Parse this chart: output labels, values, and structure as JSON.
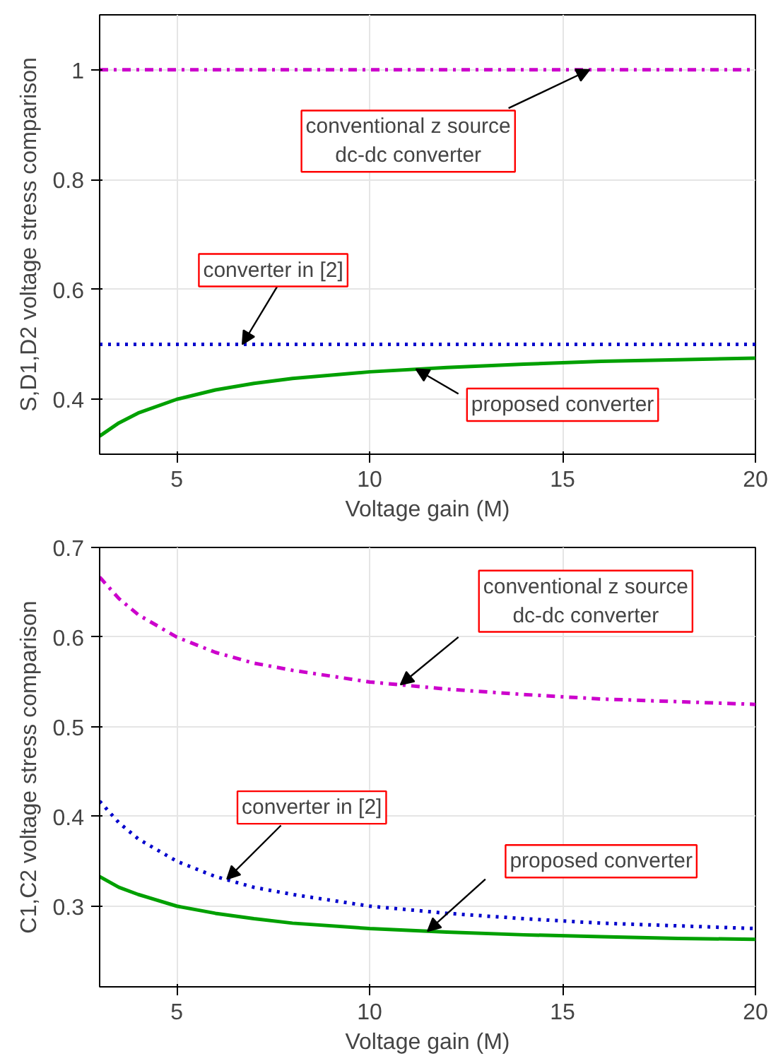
{
  "chart_data": [
    {
      "type": "line",
      "xlabel": "Voltage gain (M)",
      "ylabel": "S,D1,D2 voltage stress comparison",
      "xlim": [
        3,
        20
      ],
      "ylim": [
        0.3,
        1.1
      ],
      "xticks": [
        5,
        10,
        15,
        20
      ],
      "yticks": [
        0.4,
        0.6,
        0.8,
        1
      ],
      "grid": true,
      "x": [
        3,
        3.5,
        4,
        5,
        6,
        7,
        8,
        10,
        12,
        14,
        16,
        18,
        20
      ],
      "series": [
        {
          "color": "#cc00cc",
          "line_style": "dashdot",
          "values": [
            1,
            1,
            1,
            1,
            1,
            1,
            1,
            1,
            1,
            1,
            1,
            1,
            1
          ]
        },
        {
          "color": "#0000cc",
          "line_style": "dotted",
          "values": [
            0.5,
            0.5,
            0.5,
            0.5,
            0.5,
            0.5,
            0.5,
            0.5,
            0.5,
            0.5,
            0.5,
            0.5,
            0.5
          ]
        },
        {
          "color": "#00a000",
          "line_style": "solid",
          "values": [
            0.333,
            0.357,
            0.375,
            0.4,
            0.417,
            0.429,
            0.438,
            0.45,
            0.458,
            0.464,
            0.469,
            0.472,
            0.475
          ]
        }
      ],
      "annotations": [
        {
          "text": "conventional z source\ndc-dc converter",
          "x": 15.7,
          "y": 1.0
        },
        {
          "text": "converter in [2]",
          "x": 6.7,
          "y": 0.5
        },
        {
          "text": "proposed converter",
          "x": 11.2,
          "y": 0.455
        }
      ]
    },
    {
      "type": "line",
      "xlabel": "Voltage gain (M)",
      "ylabel": "C1,C2 voltage stress comparison",
      "xlim": [
        3,
        20
      ],
      "ylim": [
        0.21,
        0.7
      ],
      "xticks": [
        5,
        10,
        15,
        20
      ],
      "yticks": [
        0.3,
        0.4,
        0.5,
        0.6,
        0.7
      ],
      "grid": true,
      "x": [
        3,
        3.5,
        4,
        5,
        6,
        7,
        8,
        10,
        12,
        14,
        16,
        18,
        20
      ],
      "series": [
        {
          "color": "#cc00cc",
          "line_style": "dashdot",
          "values": [
            0.667,
            0.643,
            0.625,
            0.6,
            0.583,
            0.571,
            0.563,
            0.55,
            0.542,
            0.536,
            0.531,
            0.528,
            0.525
          ]
        },
        {
          "color": "#0000cc",
          "line_style": "dotted",
          "values": [
            0.417,
            0.393,
            0.375,
            0.35,
            0.333,
            0.321,
            0.313,
            0.3,
            0.292,
            0.286,
            0.281,
            0.278,
            0.275
          ]
        },
        {
          "color": "#00a000",
          "line_style": "solid",
          "values": [
            0.333,
            0.321,
            0.313,
            0.3,
            0.292,
            0.286,
            0.281,
            0.275,
            0.271,
            0.268,
            0.266,
            0.264,
            0.263
          ]
        }
      ],
      "annotations": [
        {
          "text": "conventional z source\ndc-dc converter",
          "x": 10.8,
          "y": 0.547
        },
        {
          "text": "converter in [2]",
          "x": 6.3,
          "y": 0.33
        },
        {
          "text": "proposed converter",
          "x": 11.5,
          "y": 0.272
        }
      ]
    }
  ]
}
